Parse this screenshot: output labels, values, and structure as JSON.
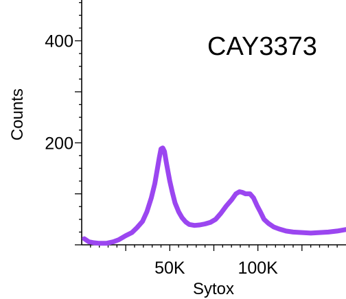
{
  "chart_data": {
    "type": "line",
    "title": "CAY3373",
    "xlabel": "Sytox",
    "ylabel": "Counts",
    "xlim": [
      0,
      150000
    ],
    "ylim": [
      0,
      480
    ],
    "x_ticks": [
      {
        "value": 50000,
        "label": "50K"
      },
      {
        "value": 100000,
        "label": "100K"
      }
    ],
    "y_ticks": [
      {
        "value": 200,
        "label": "200"
      },
      {
        "value": 400,
        "label": "400"
      }
    ],
    "grid": false,
    "colors": {
      "series": "#9b46f0"
    },
    "series": [
      {
        "values": [
          [
            1500,
            12
          ],
          [
            4000,
            6
          ],
          [
            7000,
            4
          ],
          [
            10000,
            3
          ],
          [
            14000,
            3
          ],
          [
            18000,
            6
          ],
          [
            21000,
            10
          ],
          [
            25000,
            18
          ],
          [
            28500,
            24
          ],
          [
            31500,
            34
          ],
          [
            34500,
            46
          ],
          [
            37000,
            65
          ],
          [
            39500,
            92
          ],
          [
            41500,
            120
          ],
          [
            43000,
            150
          ],
          [
            44000,
            170
          ],
          [
            45000,
            188
          ],
          [
            46000,
            190
          ],
          [
            47000,
            183
          ],
          [
            48000,
            162
          ],
          [
            49000,
            143
          ],
          [
            50000,
            125
          ],
          [
            51500,
            102
          ],
          [
            53000,
            82
          ],
          [
            55000,
            65
          ],
          [
            57000,
            53
          ],
          [
            59000,
            45
          ],
          [
            61000,
            40
          ],
          [
            64000,
            38
          ],
          [
            67000,
            39
          ],
          [
            70000,
            41
          ],
          [
            73000,
            44
          ],
          [
            76000,
            50
          ],
          [
            79000,
            62
          ],
          [
            82000,
            76
          ],
          [
            85000,
            88
          ],
          [
            87500,
            100
          ],
          [
            89500,
            104
          ],
          [
            91000,
            103
          ],
          [
            93000,
            100
          ],
          [
            95500,
            100
          ],
          [
            97500,
            92
          ],
          [
            99500,
            77
          ],
          [
            101500,
            64
          ],
          [
            103500,
            50
          ],
          [
            106000,
            42
          ],
          [
            109000,
            35
          ],
          [
            112000,
            31
          ],
          [
            116000,
            27
          ],
          [
            120000,
            25
          ],
          [
            125000,
            24
          ],
          [
            130000,
            23
          ],
          [
            135000,
            24
          ],
          [
            140000,
            25
          ],
          [
            145000,
            27
          ],
          [
            150000,
            30
          ]
        ]
      }
    ]
  }
}
